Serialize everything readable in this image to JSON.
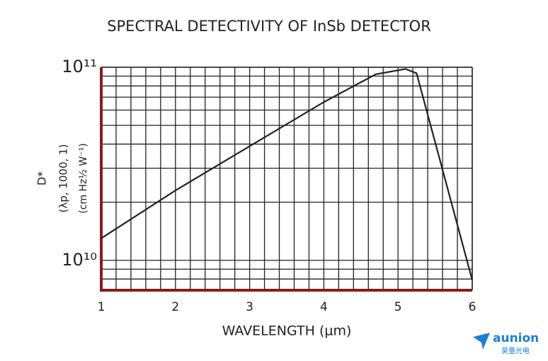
{
  "chart_data": {
    "type": "line",
    "title": "SPECTRAL DETECTIVITY OF InSb DETECTOR",
    "x_label": "WAVELENGTH (µm)",
    "y_label": [
      "D*",
      "(λp, 1000, 1)",
      "(cm Hz½ W⁻¹)"
    ],
    "log_y": true,
    "grid": true,
    "x": [
      1,
      2,
      3,
      4,
      4.7,
      5.1,
      5.25,
      6
    ],
    "series": [
      {
        "color": "#222222",
        "values": [
          13000000000,
          23000000000,
          39000000000,
          66000000000,
          92000000000,
          98000000000,
          93000000000,
          7900000000
        ]
      }
    ],
    "xlim": [
      1,
      6
    ],
    "ylim": [
      7000000000,
      100000000000
    ],
    "xticks": [
      1,
      2,
      3,
      4,
      5,
      6
    ],
    "minor_xticks": [
      1.2,
      1.4,
      1.6,
      1.8,
      2.2,
      2.4,
      2.6,
      2.8,
      3.2,
      3.4,
      3.6,
      3.8,
      4.2,
      4.4,
      4.6,
      4.8,
      5.2,
      5.4,
      5.6,
      5.8
    ],
    "yticks": [
      {
        "value": 10000000000,
        "label": "10¹⁰"
      },
      {
        "value": 100000000000,
        "label": "10¹¹"
      }
    ],
    "minor_yticks": [
      8000000000,
      9000000000,
      20000000000,
      30000000000,
      40000000000,
      50000000000,
      60000000000,
      70000000000,
      80000000000,
      90000000000
    ],
    "axis_color": "#8b1a1a"
  },
  "watermark": {
    "brand": "aunion",
    "subtitle": "昊量光电"
  }
}
